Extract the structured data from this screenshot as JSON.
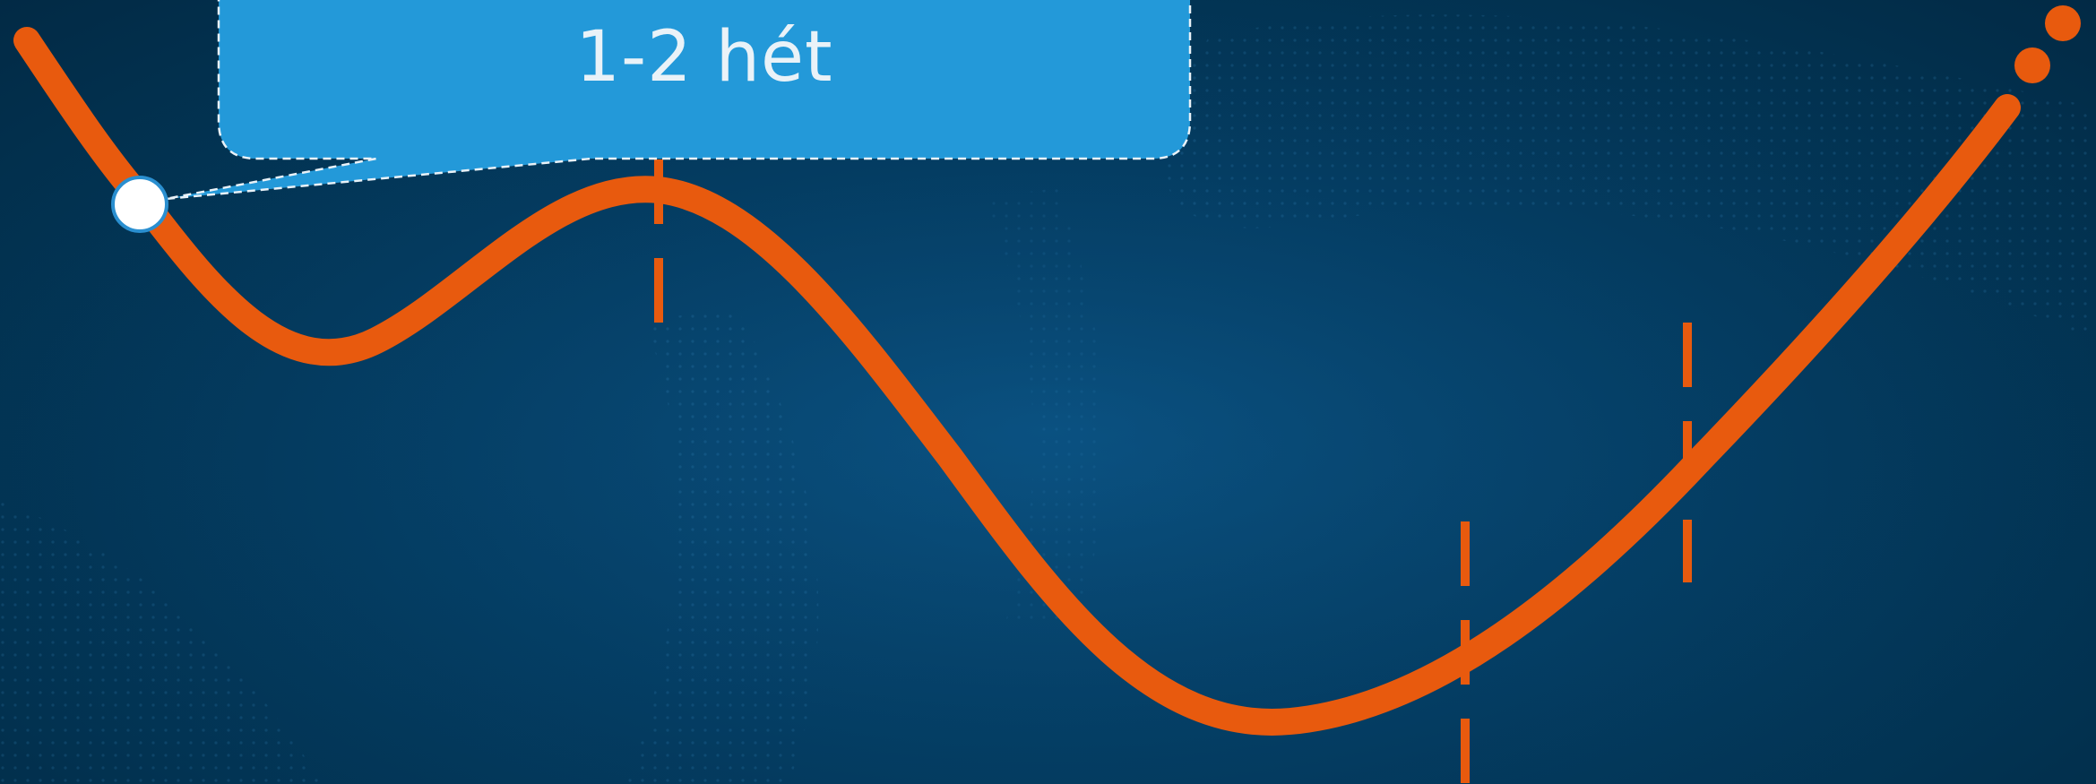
{
  "callout": {
    "text": "1-2 hét"
  },
  "colors": {
    "background": "#033557",
    "curve": "#e85a0e",
    "callout_fill": "#2399d9",
    "callout_border": "#e9f2f8",
    "marker": "#ffffff",
    "marker_border": "#2a8fd0"
  }
}
